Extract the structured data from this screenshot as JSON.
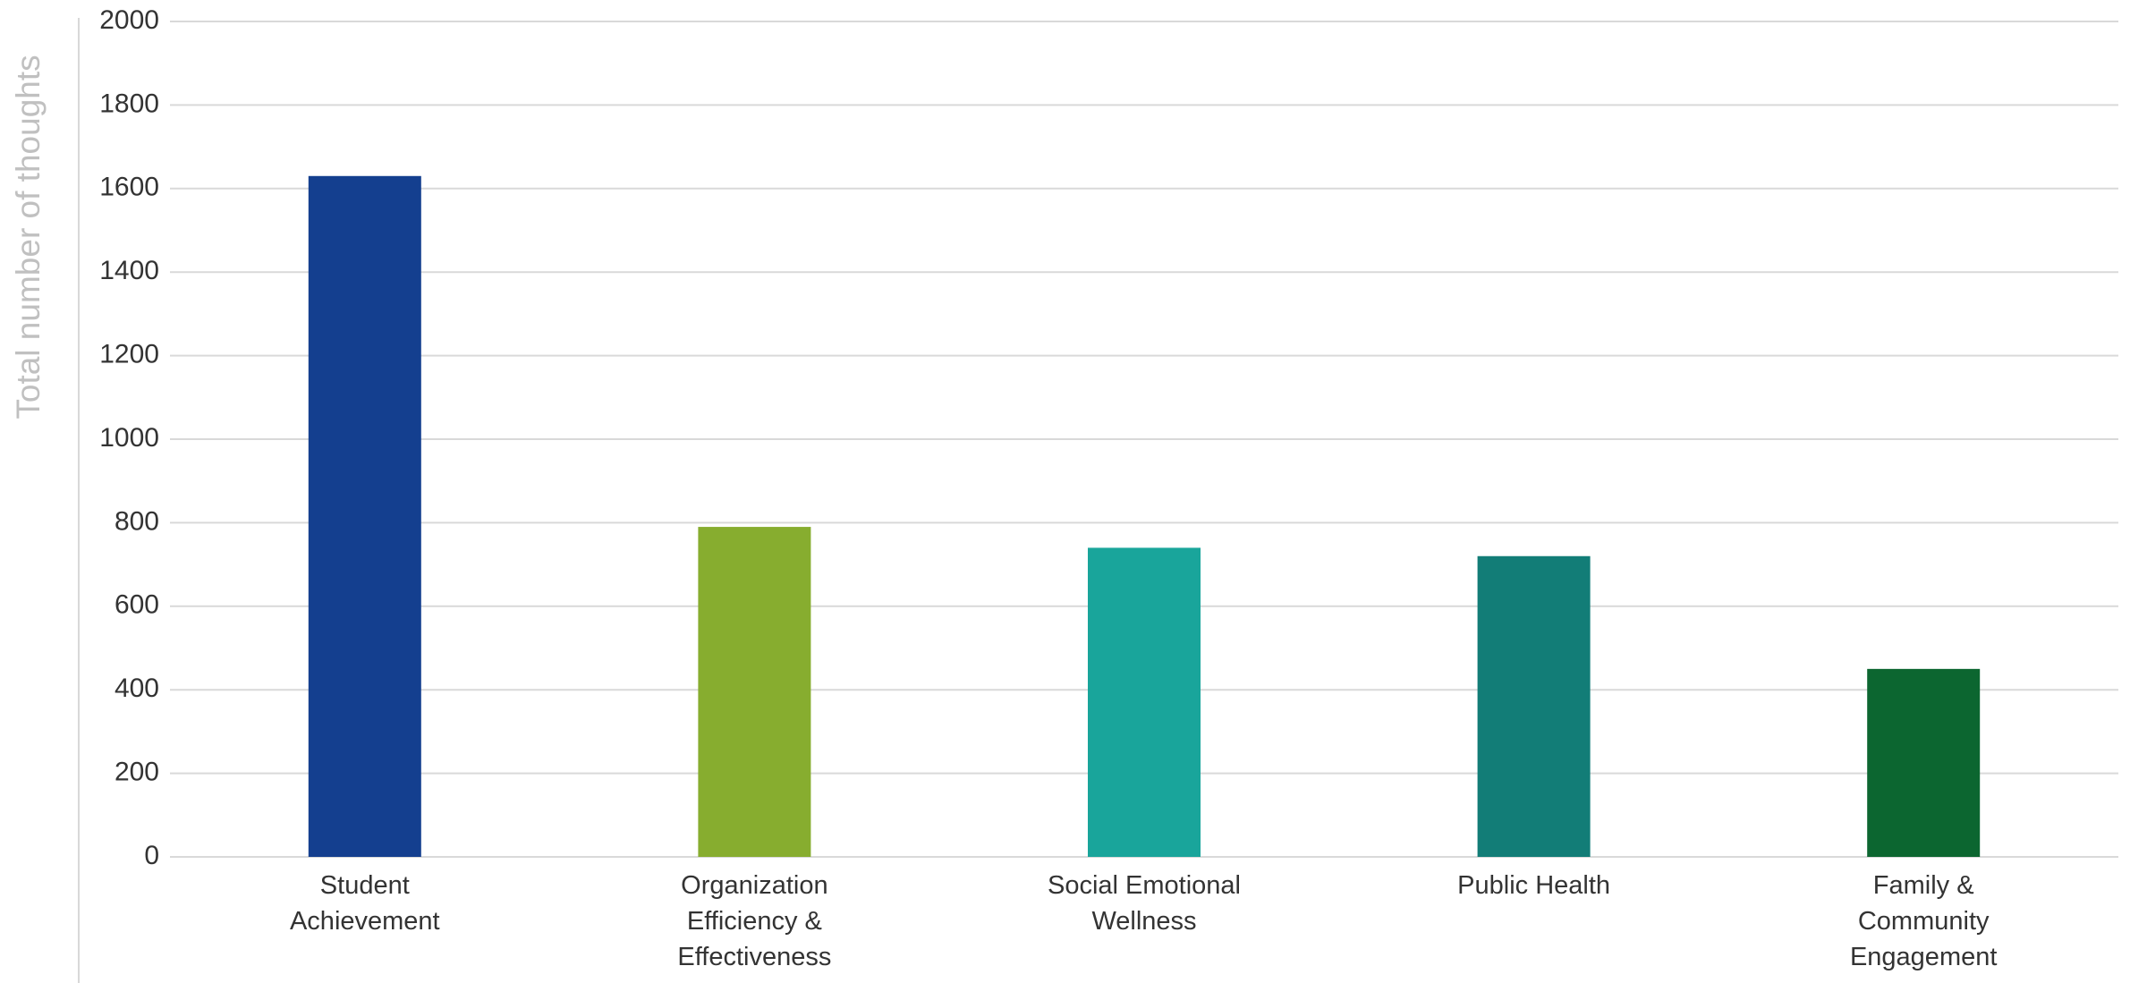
{
  "chart_data": {
    "type": "bar",
    "y_label": "Total number of thoughts",
    "categories": [
      "Student Achievement",
      "Organization Efficiency & Effectiveness",
      "Social Emotional Wellness",
      "Public Health",
      "Family & Community Engagement"
    ],
    "values": [
      1630,
      790,
      740,
      720,
      450
    ],
    "colors": [
      "#143f8f",
      "#87ad2f",
      "#19a59b",
      "#127d77",
      "#0c6630"
    ],
    "ylim": [
      0,
      2000
    ],
    "yticks": [
      0,
      200,
      400,
      600,
      800,
      1000,
      1200,
      1400,
      1600,
      1800,
      2000
    ],
    "grid": true
  }
}
